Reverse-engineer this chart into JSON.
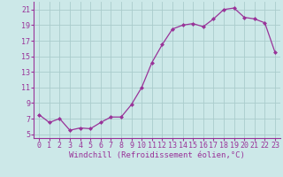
{
  "x": [
    0,
    1,
    2,
    3,
    4,
    5,
    6,
    7,
    8,
    9,
    10,
    11,
    12,
    13,
    14,
    15,
    16,
    17,
    18,
    19,
    20,
    21,
    22,
    23
  ],
  "y": [
    7.5,
    6.5,
    7.0,
    5.5,
    5.8,
    5.7,
    6.5,
    7.2,
    7.2,
    8.8,
    11.0,
    14.2,
    16.5,
    18.5,
    19.0,
    19.2,
    18.8,
    19.8,
    21.0,
    21.2,
    20.0,
    19.8,
    19.3,
    15.5
  ],
  "line_color": "#993399",
  "marker": "D",
  "marker_size": 2.0,
  "bg_color": "#cce8e8",
  "grid_color": "#aacccc",
  "xlabel": "Windchill (Refroidissement éolien,°C)",
  "xlabel_color": "#993399",
  "tick_color": "#993399",
  "label_color": "#993399",
  "ylim": [
    4.5,
    22.0
  ],
  "xlim": [
    -0.5,
    23.5
  ],
  "yticks": [
    5,
    7,
    9,
    11,
    13,
    15,
    17,
    19,
    21
  ],
  "xticks": [
    0,
    1,
    2,
    3,
    4,
    5,
    6,
    7,
    8,
    9,
    10,
    11,
    12,
    13,
    14,
    15,
    16,
    17,
    18,
    19,
    20,
    21,
    22,
    23
  ],
  "axis_fontsize": 6.5,
  "tick_fontsize": 6.0,
  "line_width": 0.9,
  "spine_color": "#993399"
}
